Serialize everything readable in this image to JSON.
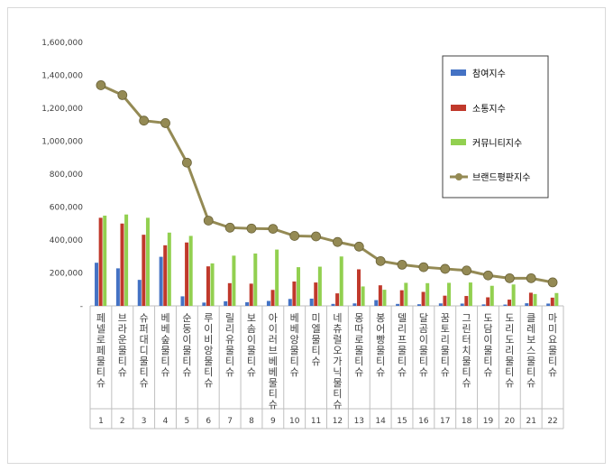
{
  "chart_data": {
    "type": "bar",
    "title": "",
    "xlabel": "",
    "ylabel": "",
    "ylim": [
      0,
      1600000
    ],
    "yticks": [
      "-",
      "200,000",
      "400,000",
      "600,000",
      "800,000",
      "1,000,000",
      "1,200,000",
      "1,400,000",
      "1,600,000"
    ],
    "grid": false,
    "legend_position": "top-right",
    "categories": [
      "페넬로페 물티슈",
      "브라운 물티슈",
      "슈퍼대디 물티슈",
      "베베숲 물티슈",
      "순둥이 물티슈",
      "루이비앙 물티슈",
      "릴리유 물티슈",
      "보솜이 물티슈",
      "아이러브베베 물티슈",
      "베베앙 물티슈",
      "미엘 물티슈",
      "네츄럴오가닉 물티슈",
      "몽따로 물티슈",
      "봉어빵 물티슈",
      "델리프 물티슈",
      "달곰이 물티슈",
      "꿈토리 물티슈",
      "그린터치 물티슈",
      "도담이 물티슈",
      "도리도리 물티슈",
      "클레보스 물티슈",
      "마미요 물티슈"
    ],
    "ranks": [
      "1",
      "2",
      "3",
      "4",
      "5",
      "6",
      "7",
      "8",
      "9",
      "10",
      "11",
      "12",
      "13",
      "14",
      "15",
      "16",
      "17",
      "18",
      "19",
      "20",
      "21",
      "22"
    ],
    "series": [
      {
        "name": "참여지수",
        "type": "bar",
        "color": "#4472c4",
        "values": [
          262000,
          228000,
          158000,
          298000,
          58000,
          20000,
          28000,
          22000,
          30000,
          42000,
          44000,
          12000,
          15000,
          35000,
          12000,
          10000,
          15000,
          14000,
          9000,
          8000,
          16000,
          14000
        ]
      },
      {
        "name": "소통지수",
        "type": "bar",
        "color": "#c0392b",
        "values": [
          535000,
          500000,
          432000,
          368000,
          385000,
          240000,
          138000,
          135000,
          97000,
          148000,
          142000,
          76000,
          222000,
          125000,
          95000,
          85000,
          62000,
          60000,
          52000,
          38000,
          80000,
          50000
        ]
      },
      {
        "name": "커뮤니티지수",
        "type": "bar",
        "color": "#92d050",
        "values": [
          548000,
          555000,
          535000,
          445000,
          425000,
          258000,
          305000,
          318000,
          342000,
          235000,
          238000,
          300000,
          118000,
          98000,
          140000,
          138000,
          140000,
          142000,
          122000,
          130000,
          72000,
          78000
        ]
      },
      {
        "name": "브랜드평판지수",
        "type": "line",
        "color": "#948a54",
        "values": [
          1340000,
          1280000,
          1125000,
          1110000,
          870000,
          518000,
          475000,
          470000,
          468000,
          425000,
          422000,
          388000,
          360000,
          272000,
          250000,
          235000,
          225000,
          215000,
          185000,
          168000,
          168000,
          143000
        ]
      }
    ]
  }
}
